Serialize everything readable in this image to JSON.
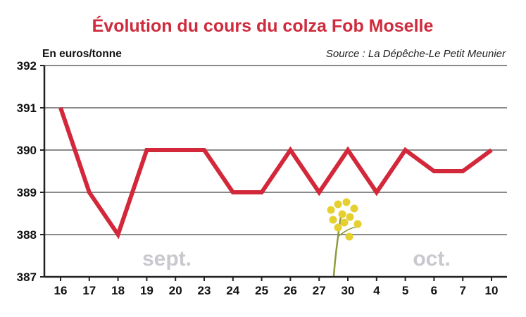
{
  "chart_data": {
    "type": "line",
    "title": "Évolution du cours du colza Fob Moselle",
    "unit_label": "En euros/tonne",
    "source": "Source : La Dépêche-Le Petit Meunier",
    "categories": [
      "16",
      "17",
      "18",
      "19",
      "20",
      "23",
      "24",
      "25",
      "26",
      "27",
      "30",
      "4",
      "5",
      "6",
      "7",
      "10"
    ],
    "series": [
      {
        "values": [
          391,
          389,
          388,
          390,
          390,
          390,
          389,
          389,
          390,
          389,
          390,
          389,
          390,
          389.5,
          389.5,
          390
        ]
      }
    ],
    "yticks": [
      387,
      388,
      389,
      390,
      391,
      392
    ],
    "ylim": [
      387,
      392
    ],
    "month_labels": [
      "sept.",
      "oct."
    ],
    "grid": true,
    "colors": {
      "title": "#cf2b3c",
      "line": "#d2283a",
      "grid": "#8a8a8a",
      "axis": "#222222",
      "month": "#c8c8ce",
      "stem": "#8f9a3c",
      "flower": "#e6d030"
    },
    "decoration": "rapeseed-flower-icon"
  }
}
